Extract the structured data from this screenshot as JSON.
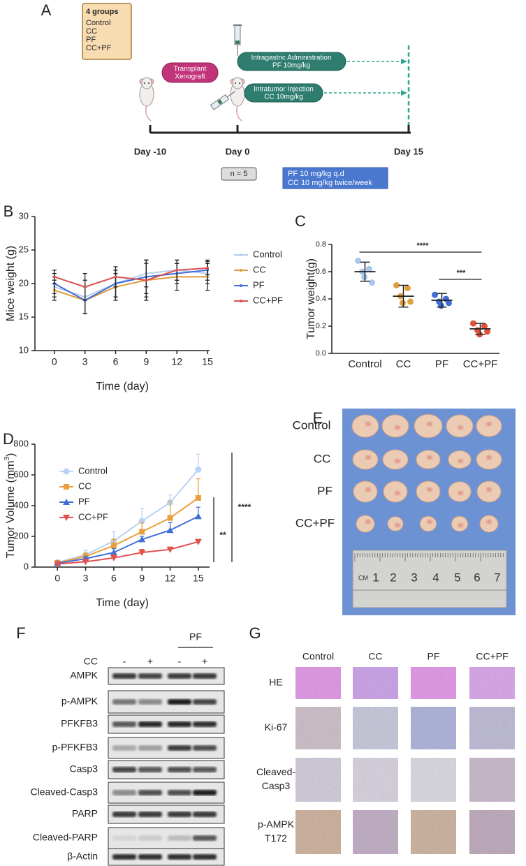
{
  "schematic": {
    "panel": "A",
    "groups_box": {
      "title": "4 groups",
      "items": [
        "Control",
        "CC",
        "PF",
        "CC+PF"
      ]
    },
    "xenograft": [
      "Transplant",
      "Xenograft"
    ],
    "gavage": [
      "Intragastric Administration",
      "PF 10mg/kg"
    ],
    "injection": [
      "Intratumor Injection",
      "CC 10mg/kg"
    ],
    "days": [
      "Day -10",
      "Day 0",
      "Day 15"
    ],
    "n": "n = 5",
    "dosing": [
      "PF 10 mg/kg q.d",
      "CC 10 mg/kg twice/week"
    ]
  },
  "chart_data": [
    {
      "type": "line",
      "panel": "B",
      "x_label": "Time (day)",
      "y_label": "Mice weight (g)",
      "x": [
        0,
        3,
        6,
        9,
        12,
        15
      ],
      "xlim": [
        -1.9,
        15.2
      ],
      "xticks": [
        0,
        3,
        6,
        9,
        12,
        15
      ],
      "ylim": [
        10,
        30
      ],
      "yticks": [
        10,
        15,
        20,
        25,
        30
      ],
      "legend": "right",
      "series": [
        {
          "name": "Control",
          "color": "#b7cdee",
          "marker": "dot",
          "values": [
            19.5,
            18,
            20,
            21.5,
            22,
            21.5
          ],
          "errors": [
            1.5,
            2.5,
            2,
            2,
            1.5,
            1.5
          ]
        },
        {
          "name": "CC",
          "color": "#e09a3a",
          "marker": "dot",
          "values": [
            19,
            17.5,
            19.5,
            20.5,
            21,
            21
          ],
          "errors": [
            1.5,
            2,
            2,
            2.5,
            2,
            2
          ]
        },
        {
          "name": "PF",
          "color": "#3e6fd8",
          "marker": "dot",
          "values": [
            20,
            17.5,
            20,
            21,
            21.5,
            22
          ],
          "errors": [
            1.5,
            2,
            2,
            2.5,
            1.5,
            1.5
          ]
        },
        {
          "name": "CC+PF",
          "color": "#d9504e",
          "marker": "dot",
          "values": [
            21,
            19.5,
            21,
            20.5,
            22,
            22.3
          ],
          "errors": [
            1,
            2,
            1.5,
            3,
            1.5,
            1
          ]
        }
      ]
    },
    {
      "type": "dot",
      "panel": "C",
      "y_label": "Tumor weight(g)",
      "categories": [
        "Control",
        "CC",
        "PF",
        "CC+PF"
      ],
      "colors": [
        "#a9c8ec",
        "#e0a040",
        "#3f6fd6",
        "#e0503a"
      ],
      "points": [
        [
          0.68,
          0.62,
          0.6,
          0.52,
          0.56
        ],
        [
          0.5,
          0.48,
          0.42,
          0.38,
          0.37
        ],
        [
          0.43,
          0.4,
          0.38,
          0.37,
          0.35
        ],
        [
          0.22,
          0.2,
          0.17,
          0.16,
          0.14
        ]
      ],
      "means": [
        0.6,
        0.42,
        0.39,
        0.18
      ],
      "sd": [
        0.07,
        0.08,
        0.05,
        0.04
      ],
      "ylim": [
        0,
        0.8
      ],
      "yticks": [
        {
          "value": 0,
          "label": "0.0"
        },
        0.2,
        0.4,
        0.6,
        0.8
      ],
      "annotations": [
        "****",
        "***"
      ]
    },
    {
      "type": "line",
      "panel": "D",
      "x_label": "Time (day)",
      "y_label": "Tumor Volume (mm",
      "y_label_sup": "3",
      "y_label_end": ")",
      "x": [
        0,
        3,
        6,
        9,
        12,
        15
      ],
      "xlim": [
        -2.4,
        16.2
      ],
      "xticks": [
        0,
        3,
        6,
        9,
        12,
        15
      ],
      "ylim": [
        0,
        800
      ],
      "yticks": [
        0,
        200,
        400,
        600,
        800
      ],
      "legend": "upper left",
      "series": [
        {
          "name": "Control",
          "color": "#b9d3f2",
          "marker": "circle",
          "values": [
            30,
            80,
            170,
            300,
            420,
            635
          ],
          "errors": [
            10,
            30,
            60,
            80,
            50,
            100
          ]
        },
        {
          "name": "CC",
          "color": "#e8a03c",
          "marker": "square",
          "values": [
            28,
            70,
            140,
            230,
            320,
            450
          ],
          "errors": [
            10,
            20,
            40,
            60,
            110,
            125
          ]
        },
        {
          "name": "PF",
          "color": "#3e6fd8",
          "marker": "triangle-up",
          "values": [
            25,
            55,
            95,
            180,
            240,
            330
          ],
          "errors": [
            8,
            15,
            25,
            20,
            50,
            60
          ]
        },
        {
          "name": "CC+PF",
          "color": "#e0524e",
          "marker": "triangle-down",
          "values": [
            20,
            35,
            60,
            95,
            115,
            165
          ],
          "errors": [
            8,
            12,
            20,
            20,
            15,
            15
          ]
        }
      ],
      "annotations": [
        "****",
        "**"
      ]
    }
  ],
  "tumor_photo": {
    "panel": "E",
    "groups": [
      "Control",
      "CC",
      "PF",
      "CC+PF"
    ],
    "ruler": [
      "CM",
      "1",
      "2",
      "3",
      "4",
      "5",
      "6",
      "7"
    ]
  },
  "western_blot": {
    "panel": "F",
    "pf": "PF",
    "cc": "CC",
    "signs": [
      "-",
      "+",
      "-",
      "+"
    ],
    "proteins": [
      "AMPK",
      "p-AMPK",
      "PFKFB3",
      "p-PFKFB3",
      "Casp3",
      "Cleaved-Casp3",
      "PARP",
      "Cleaved-PARP",
      "β-Actin"
    ]
  },
  "ihc": {
    "panel": "G",
    "columns": [
      "Control",
      "CC",
      "PF",
      "CC+PF"
    ],
    "rows": [
      [
        "HE"
      ],
      [
        "Ki-67"
      ],
      [
        "Cleaved-",
        "Casp3"
      ],
      [
        "p-AMPK",
        "T172"
      ]
    ]
  }
}
